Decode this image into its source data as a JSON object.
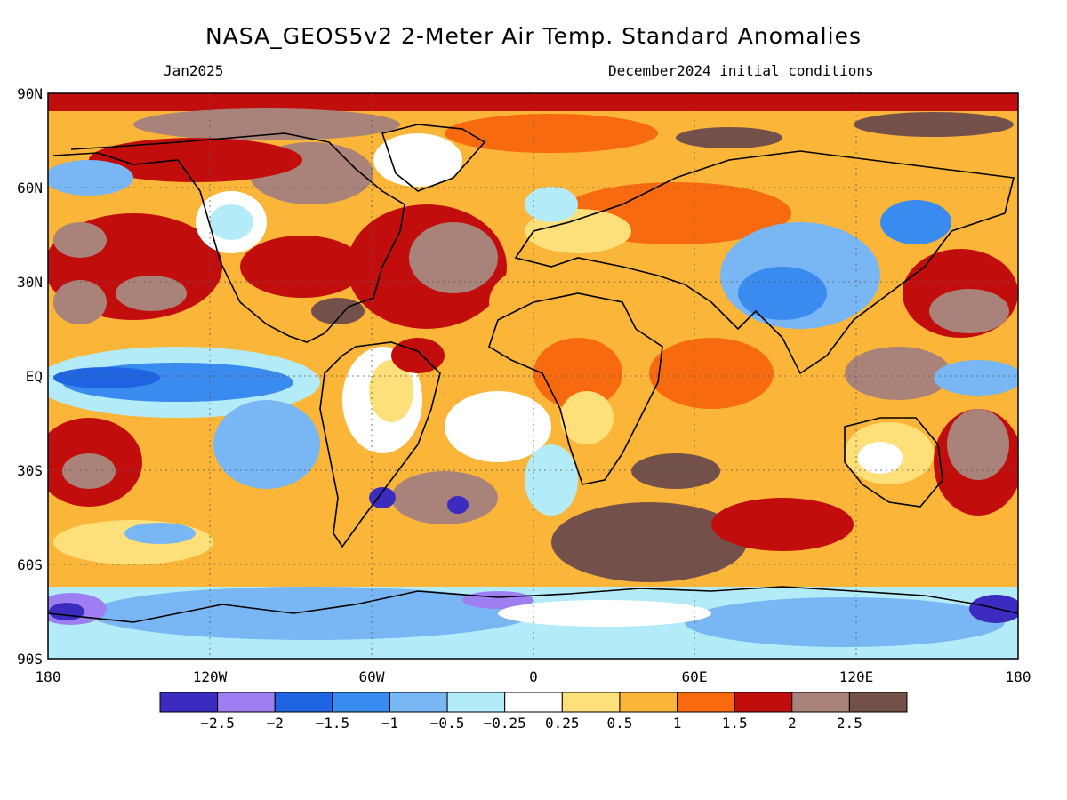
{
  "header": {
    "title": "NASA_GEOS5v2 2-Meter Air Temp. Standard Anomalies",
    "valid_month": "Jan2025",
    "init_conditions": "December2024 initial conditions"
  },
  "map": {
    "lat_ticks": [
      "90N",
      "60N",
      "30N",
      "EQ",
      "30S",
      "60S",
      "90S"
    ],
    "lon_ticks": [
      "180",
      "120W",
      "60W",
      "0",
      "60E",
      "120E",
      "180"
    ]
  },
  "colorbar": {
    "labels": [
      "-2.5",
      "-2",
      "-1.5",
      "-1",
      "-0.5",
      "-0.25",
      "0.25",
      "0.5",
      "1",
      "1.5",
      "2",
      "2.5"
    ],
    "colors": [
      "#3b2bbf",
      "#9d7ff2",
      "#1f64e0",
      "#3a8bf0",
      "#78b6f4",
      "#b3ecf8",
      "#ffffff",
      "#fde07a",
      "#fbb538",
      "#f76a10",
      "#c20d0d",
      "#a9827a",
      "#73504a"
    ]
  }
}
